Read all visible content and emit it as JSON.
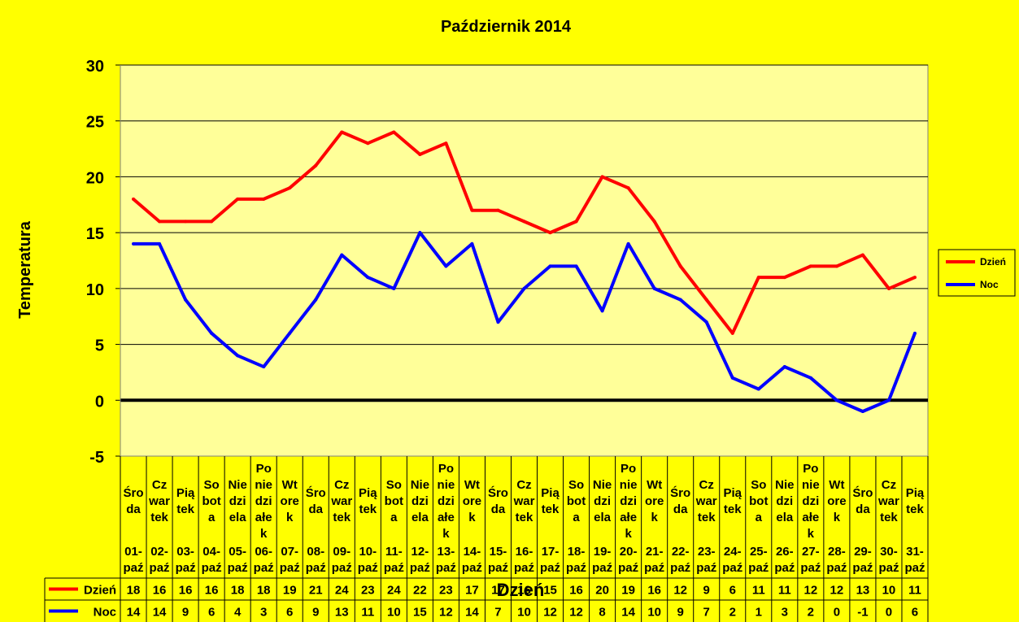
{
  "chart_data": {
    "type": "line",
    "title": "Październik 2014",
    "xlabel": "Dzień",
    "ylabel": "Temperatura",
    "ylim": [
      -5,
      30
    ],
    "yticks": [
      "-5",
      "0",
      "5",
      "10",
      "15",
      "20",
      "25",
      "30"
    ],
    "grid": true,
    "legend_position": "right",
    "colors": {
      "background": "#ffff00",
      "plot_area": "#ffff99",
      "zero_line": "#000000"
    },
    "categories": [
      {
        "day": [
          "Śro",
          "da"
        ],
        "date": [
          "01-",
          "paź"
        ]
      },
      {
        "day": [
          "Cz",
          "war",
          "tek"
        ],
        "date": [
          "02-",
          "paź"
        ]
      },
      {
        "day": [
          "Pią",
          "tek"
        ],
        "date": [
          "03-",
          "paź"
        ]
      },
      {
        "day": [
          "So",
          "bot",
          "a"
        ],
        "date": [
          "04-",
          "paź"
        ]
      },
      {
        "day": [
          "Nie",
          "dzi",
          "ela"
        ],
        "date": [
          "05-",
          "paź"
        ]
      },
      {
        "day": [
          "Po",
          "nie",
          "dzi",
          "ałe",
          "k"
        ],
        "date": [
          "06-",
          "paź"
        ]
      },
      {
        "day": [
          "Wt",
          "ore",
          "k"
        ],
        "date": [
          "07-",
          "paź"
        ]
      },
      {
        "day": [
          "Śro",
          "da"
        ],
        "date": [
          "08-",
          "paź"
        ]
      },
      {
        "day": [
          "Cz",
          "war",
          "tek"
        ],
        "date": [
          "09-",
          "paź"
        ]
      },
      {
        "day": [
          "Pią",
          "tek"
        ],
        "date": [
          "10-",
          "paź"
        ]
      },
      {
        "day": [
          "So",
          "bot",
          "a"
        ],
        "date": [
          "11-",
          "paź"
        ]
      },
      {
        "day": [
          "Nie",
          "dzi",
          "ela"
        ],
        "date": [
          "12-",
          "paź"
        ]
      },
      {
        "day": [
          "Po",
          "nie",
          "dzi",
          "ałe",
          "k"
        ],
        "date": [
          "13-",
          "paź"
        ]
      },
      {
        "day": [
          "Wt",
          "ore",
          "k"
        ],
        "date": [
          "14-",
          "paź"
        ]
      },
      {
        "day": [
          "Śro",
          "da"
        ],
        "date": [
          "15-",
          "paź"
        ]
      },
      {
        "day": [
          "Cz",
          "war",
          "tek"
        ],
        "date": [
          "16-",
          "paź"
        ]
      },
      {
        "day": [
          "Pią",
          "tek"
        ],
        "date": [
          "17-",
          "paź"
        ]
      },
      {
        "day": [
          "So",
          "bot",
          "a"
        ],
        "date": [
          "18-",
          "paź"
        ]
      },
      {
        "day": [
          "Nie",
          "dzi",
          "ela"
        ],
        "date": [
          "19-",
          "paź"
        ]
      },
      {
        "day": [
          "Po",
          "nie",
          "dzi",
          "ałe",
          "k"
        ],
        "date": [
          "20-",
          "paź"
        ]
      },
      {
        "day": [
          "Wt",
          "ore",
          "k"
        ],
        "date": [
          "21-",
          "paź"
        ]
      },
      {
        "day": [
          "Śro",
          "da"
        ],
        "date": [
          "22-",
          "paź"
        ]
      },
      {
        "day": [
          "Cz",
          "war",
          "tek"
        ],
        "date": [
          "23-",
          "paź"
        ]
      },
      {
        "day": [
          "Pią",
          "tek"
        ],
        "date": [
          "24-",
          "paź"
        ]
      },
      {
        "day": [
          "So",
          "bot",
          "a"
        ],
        "date": [
          "25-",
          "paź"
        ]
      },
      {
        "day": [
          "Nie",
          "dzi",
          "ela"
        ],
        "date": [
          "26-",
          "paź"
        ]
      },
      {
        "day": [
          "Po",
          "nie",
          "dzi",
          "ałe",
          "k"
        ],
        "date": [
          "27-",
          "paź"
        ]
      },
      {
        "day": [
          "Wt",
          "ore",
          "k"
        ],
        "date": [
          "28-",
          "paź"
        ]
      },
      {
        "day": [
          "Śro",
          "da"
        ],
        "date": [
          "29-",
          "paź"
        ]
      },
      {
        "day": [
          "Cz",
          "war",
          "tek"
        ],
        "date": [
          "30-",
          "paź"
        ]
      },
      {
        "day": [
          "Pią",
          "tek"
        ],
        "date": [
          "31-",
          "paź"
        ]
      }
    ],
    "series": [
      {
        "name": "Dzień",
        "color": "#ff0000",
        "values": [
          18,
          16,
          16,
          16,
          18,
          18,
          19,
          21,
          24,
          23,
          24,
          22,
          23,
          17,
          17,
          16,
          15,
          16,
          20,
          19,
          16,
          12,
          9,
          6,
          11,
          11,
          12,
          12,
          13,
          10,
          11
        ]
      },
      {
        "name": "Noc",
        "color": "#0000ff",
        "values": [
          14,
          14,
          9,
          6,
          4,
          3,
          6,
          9,
          13,
          11,
          10,
          15,
          12,
          14,
          7,
          10,
          12,
          12,
          8,
          14,
          10,
          9,
          7,
          2,
          1,
          3,
          2,
          0,
          -1,
          0,
          6
        ]
      }
    ]
  }
}
